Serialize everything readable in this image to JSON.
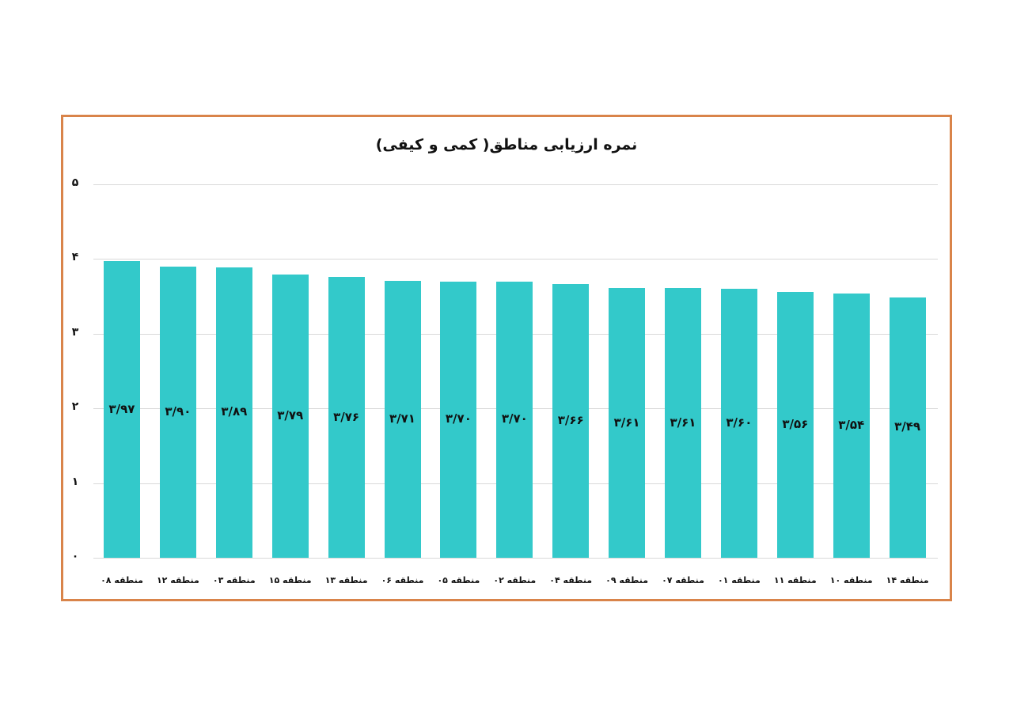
{
  "chart_data": {
    "type": "bar",
    "title": "نمره ارزیابی مناطق( کمی و کیفی)",
    "xlabel": "",
    "ylabel": "",
    "ylim": [
      0,
      5
    ],
    "yticks": [
      "۰",
      "۱",
      "۲",
      "۳",
      "۴",
      "۵"
    ],
    "grid": true,
    "legend": null,
    "categories": [
      "منطقه ۰۸",
      "منطقه ۱۲",
      "منطقه ۰۳",
      "منطقه ۱۵",
      "منطقه ۱۳",
      "منطقه ۰۶",
      "منطقه ۰۵",
      "منطقه ۰۲",
      "منطقه ۰۴",
      "منطقه ۰۹",
      "منطقه ۰۷",
      "منطقه ۰۱",
      "منطقه ۱۱",
      "منطقه ۱۰",
      "منطقه ۱۴"
    ],
    "values": [
      3.97,
      3.9,
      3.89,
      3.79,
      3.76,
      3.71,
      3.7,
      3.7,
      3.66,
      3.61,
      3.61,
      3.6,
      3.56,
      3.54,
      3.49
    ],
    "value_labels": [
      "۳/۹۷",
      "۳/۹۰",
      "۳/۸۹",
      "۳/۷۹",
      "۳/۷۶",
      "۳/۷۱",
      "۳/۷۰",
      "۳/۷۰",
      "۳/۶۶",
      "۳/۶۱",
      "۳/۶۱",
      "۳/۶۰",
      "۳/۵۶",
      "۳/۵۴",
      "۳/۴۹"
    ],
    "colors": {
      "bar": "#33C9CA",
      "frame": "#D9844A",
      "grid": "#D9D9D9"
    }
  }
}
